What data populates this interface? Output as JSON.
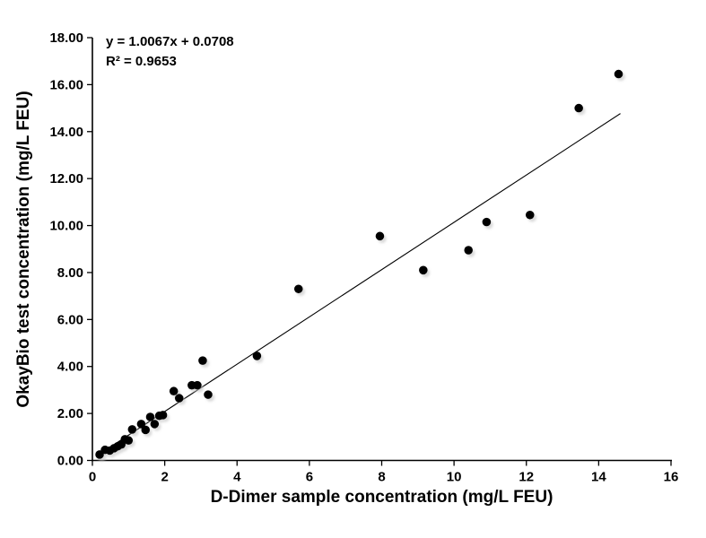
{
  "chart_data": {
    "type": "scatter",
    "title": "",
    "xlabel": "D-Dimer sample concentration (mg/L FEU)",
    "ylabel": "OkayBio test concentration (mg/L FEU)",
    "xlim": [
      0,
      16
    ],
    "ylim": [
      0,
      18
    ],
    "x_ticks": [
      0,
      2,
      4,
      6,
      8,
      10,
      12,
      14,
      16
    ],
    "y_ticks": [
      0,
      2,
      4,
      6,
      8,
      10,
      12,
      14,
      16,
      18
    ],
    "y_tick_format_decimals": 2,
    "grid": false,
    "legend_position": "none",
    "point_color": "#000000",
    "axis_color": "#000000",
    "background_color": "#ffffff",
    "annotation": {
      "equation": "y = 1.0067x + 0.0708",
      "r_squared": "R² = 0.9653"
    },
    "trendline": {
      "slope": 1.0067,
      "intercept": 0.0708,
      "x_start": 0.2,
      "x_end": 14.6,
      "color": "#000000"
    },
    "points": [
      [
        0.2,
        0.25
      ],
      [
        0.35,
        0.45
      ],
      [
        0.48,
        0.42
      ],
      [
        0.6,
        0.52
      ],
      [
        0.7,
        0.6
      ],
      [
        0.8,
        0.68
      ],
      [
        0.9,
        0.9
      ],
      [
        1.0,
        0.85
      ],
      [
        1.1,
        1.32
      ],
      [
        1.35,
        1.55
      ],
      [
        1.47,
        1.3
      ],
      [
        1.6,
        1.85
      ],
      [
        1.72,
        1.55
      ],
      [
        1.85,
        1.9
      ],
      [
        1.95,
        1.93
      ],
      [
        2.25,
        2.95
      ],
      [
        2.4,
        2.65
      ],
      [
        2.75,
        3.2
      ],
      [
        2.9,
        3.2
      ],
      [
        3.05,
        4.25
      ],
      [
        3.2,
        2.8
      ],
      [
        4.55,
        4.45
      ],
      [
        5.7,
        7.3
      ],
      [
        7.95,
        9.55
      ],
      [
        9.15,
        8.1
      ],
      [
        10.4,
        8.95
      ],
      [
        10.9,
        10.15
      ],
      [
        12.1,
        10.45
      ],
      [
        13.45,
        15.0
      ],
      [
        14.55,
        16.45
      ]
    ]
  }
}
